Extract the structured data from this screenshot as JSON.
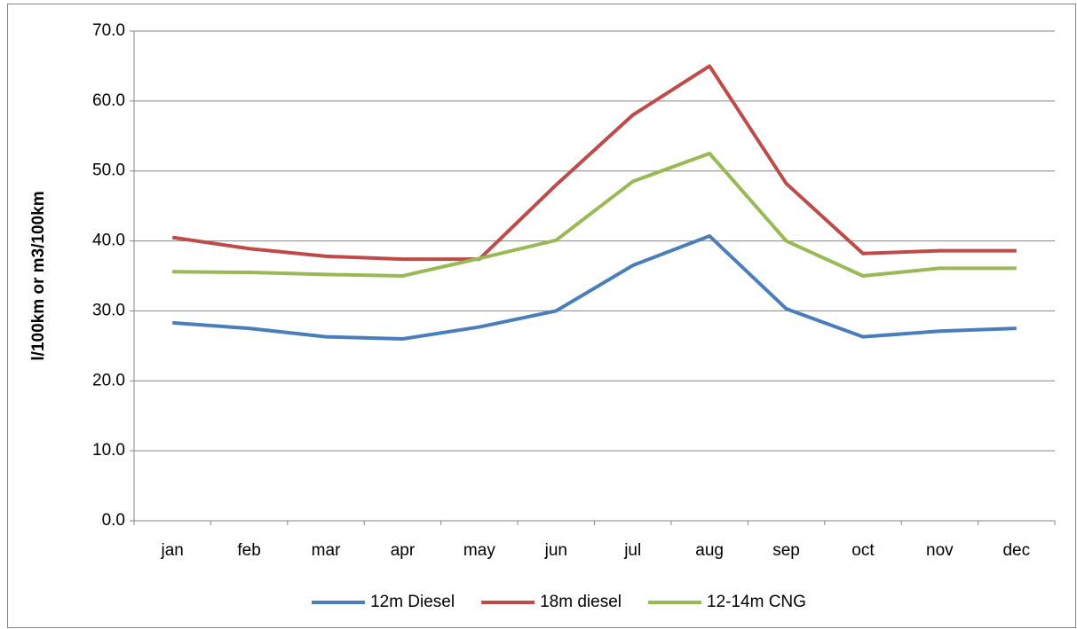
{
  "chart_data": {
    "type": "line",
    "y_label": "l/100km or m3/100km",
    "categories": [
      "jan",
      "feb",
      "mar",
      "apr",
      "may",
      "jun",
      "jul",
      "aug",
      "sep",
      "oct",
      "nov",
      "dec"
    ],
    "series": [
      {
        "name": "12m Diesel",
        "color": "#4a7ebb",
        "values": [
          28.3,
          27.5,
          26.3,
          26.0,
          27.7,
          30.0,
          36.5,
          40.7,
          30.3,
          26.3,
          27.1,
          27.5
        ]
      },
      {
        "name": "18m diesel",
        "color": "#be4b48",
        "values": [
          40.5,
          38.9,
          37.8,
          37.4,
          37.4,
          48.0,
          58.0,
          65.0,
          48.2,
          38.2,
          38.6,
          38.6
        ]
      },
      {
        "name": "12-14m CNG",
        "color": "#98b954",
        "values": [
          35.6,
          35.5,
          35.2,
          35.0,
          37.5,
          40.1,
          48.5,
          52.5,
          40.0,
          35.0,
          36.1,
          36.1
        ]
      }
    ],
    "ylim": [
      0,
      70
    ],
    "yticks": [
      {
        "value": 0,
        "label": "0.0"
      },
      {
        "value": 10,
        "label": "10.0"
      },
      {
        "value": 20,
        "label": "20.0"
      },
      {
        "value": 30,
        "label": "30.0"
      },
      {
        "value": 40,
        "label": "40.0"
      },
      {
        "value": 50,
        "label": "50.0"
      },
      {
        "value": 60,
        "label": "60.0"
      },
      {
        "value": 70,
        "label": "70.0"
      }
    ],
    "grid": true,
    "legend": "bottom"
  }
}
